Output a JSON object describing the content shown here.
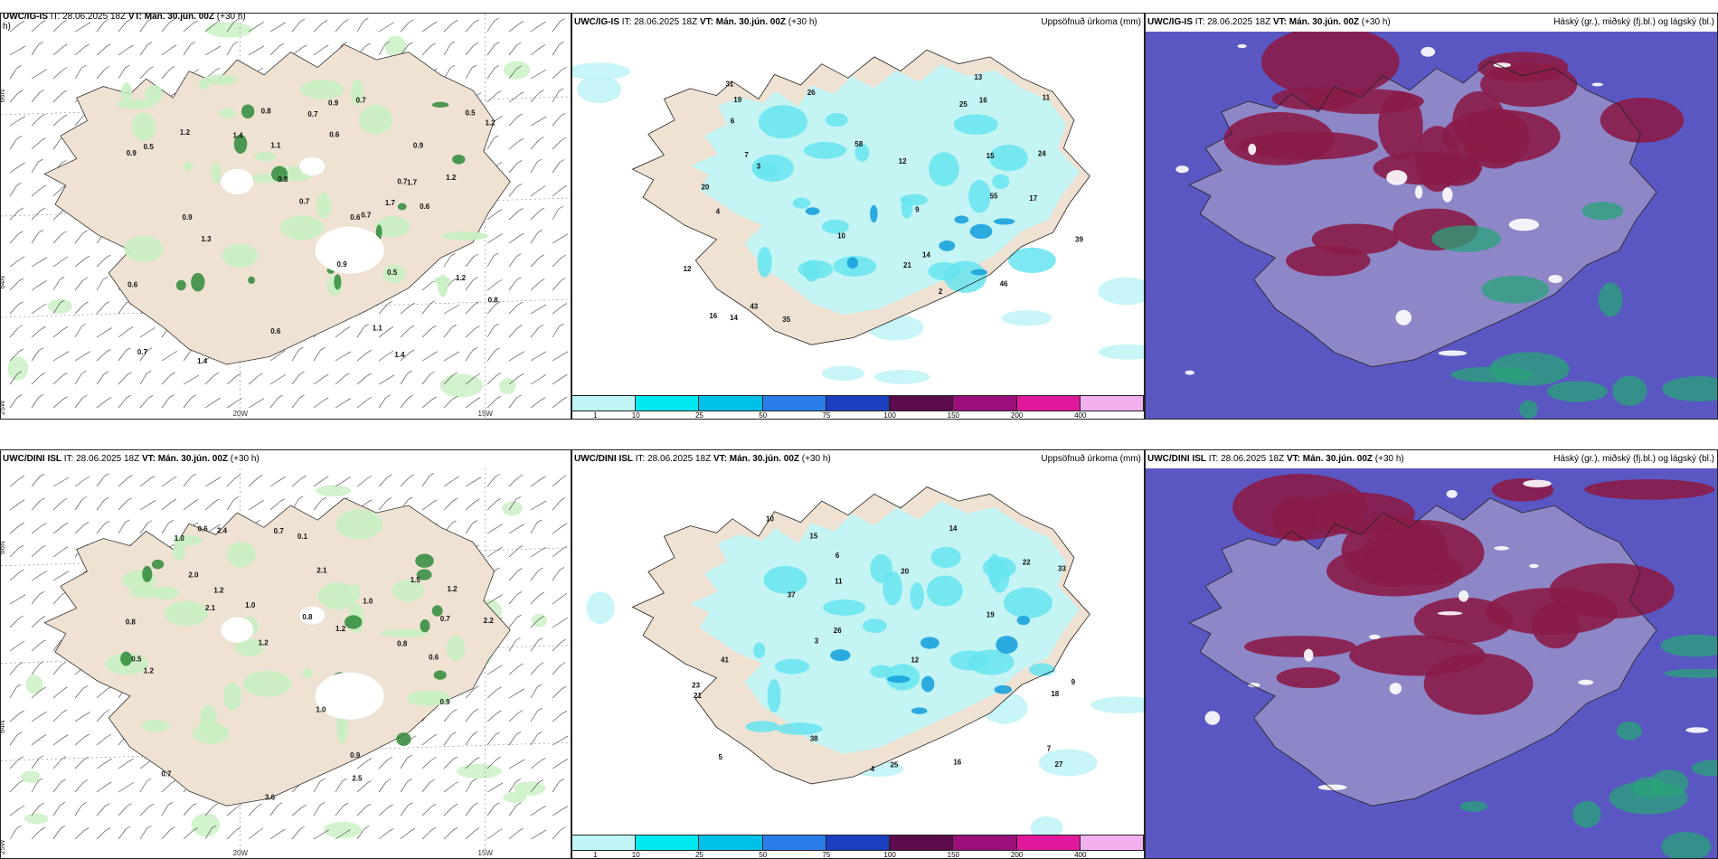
{
  "rows": [
    {
      "model": "UWC/IG-IS",
      "it": "IT: 28.06.2025 18Z",
      "vt_label": "VT:",
      "vt": "Mán. 30.jún. 00Z",
      "lead": "(+30 h)",
      "left_header_extra": "h)"
    },
    {
      "model": "UWC/DINI ISL",
      "it": "IT: 28.06.2025 18Z",
      "vt_label": "VT:",
      "vt": "Mán. 30.jún. 00Z",
      "lead": "(+30 h)"
    }
  ],
  "precip_title": "Uppsöfnuð úrkoma (mm)",
  "cloud_title": "Háský (gr.), miðský (fj.bl.) og lágský (bl.)",
  "axis": {
    "lat_66": "66N",
    "lat_64": "64N",
    "lon_25": "25W",
    "lon_20": "20W",
    "lon_15": "15W"
  },
  "legend": {
    "ticks": [
      "1",
      "10",
      "25",
      "50",
      "75",
      "100",
      "150",
      "200",
      "400"
    ],
    "colors": [
      "#bff5f7",
      "#00e8f0",
      "#00bfe8",
      "#2a7de8",
      "#1c3fc0",
      "#5b0b4a",
      "#9a0f7a",
      "#e0189b",
      "#f3b0ef"
    ]
  },
  "colors": {
    "land": "#efe2d3",
    "green_light": "#c8f0c2",
    "green_dark": "#2f8a3a",
    "precip_light": "#c2f4f6",
    "precip_mid": "#66e4ef",
    "precip_dark": "#1aa2dd",
    "cloud_blue": "#5a57c2",
    "cloud_red": "#8a1c48",
    "cloud_green": "#2aa37a"
  },
  "top_left_values": [
    "0.5",
    "0.9",
    "0.5",
    "0.7",
    "0.6",
    "0.7",
    "0.7",
    "0.9",
    "0.7",
    "0.6",
    "1.2",
    "1.7",
    "0.6",
    "0.8",
    "0.8",
    "0.6",
    "1.1",
    "0.8",
    "0.5",
    "0.7",
    "1.4",
    "1.1",
    "1.2",
    "0.9",
    "1.3",
    "0.7",
    "1.4",
    "1.7",
    "0.9",
    "0.6",
    "1.2",
    "1.4",
    "0.9",
    "1.2"
  ],
  "top_mid_values": [
    "2",
    "3",
    "4",
    "6",
    "7",
    "9",
    "10",
    "12",
    "13",
    "15",
    "16",
    "17",
    "21",
    "25",
    "26",
    "31",
    "43",
    "58",
    "46",
    "24",
    "12",
    "11",
    "14",
    "39",
    "55",
    "35",
    "20",
    "16",
    "14",
    "19"
  ],
  "bottom_left_values": [
    "0.8",
    "0.1",
    "0.6",
    "0.7",
    "1.0",
    "1.2",
    "0.7",
    "1.0",
    "0.6",
    "0.8",
    "1.2",
    "1.5",
    "0.9",
    "0.9",
    "2.4",
    "2.1",
    "0.8",
    "1.0",
    "1.2",
    "2.2",
    "2.1",
    "2.0",
    "2.5",
    "1.2",
    "0.7",
    "0.5",
    "3.6",
    "1.0",
    "1.2"
  ],
  "bottom_mid_values": [
    "3",
    "4",
    "5",
    "7",
    "9",
    "10",
    "12",
    "14",
    "15",
    "16",
    "18",
    "19",
    "20",
    "21",
    "22",
    "25",
    "26",
    "27",
    "33",
    "37",
    "38",
    "41",
    "23",
    "11",
    "6"
  ]
}
